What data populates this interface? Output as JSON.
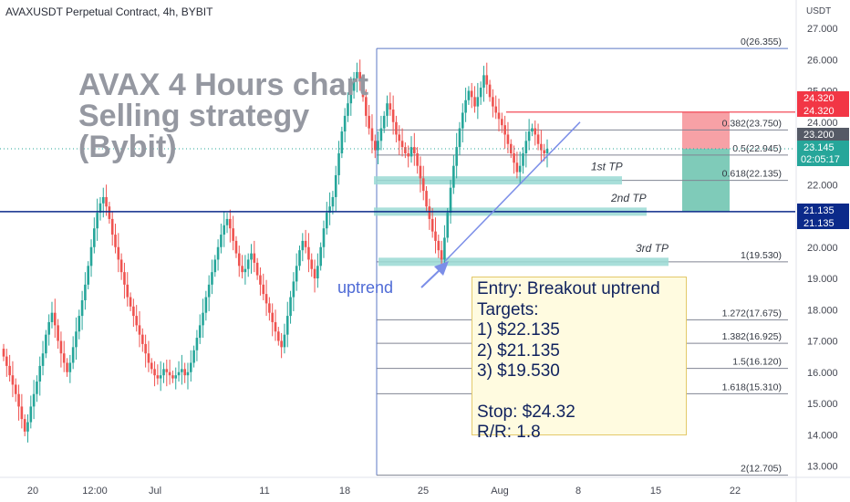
{
  "header": {
    "symbol": "AVAXUSDT Perpetual Contract, 4h, BYBIT",
    "currency": "USDT"
  },
  "title_lines": [
    "AVAX 4 Hours chart",
    "Selling strategy",
    "(Bybit)"
  ],
  "annotation": {
    "entry": "Entry: Breakout uptrend",
    "targets_label": "Targets:",
    "targets": [
      "1) $22.135",
      "2) $21.135",
      "3) $19.530"
    ],
    "stop": "Stop: $24.32",
    "rr": "R/R: 1.8"
  },
  "uptrend_label": "uptrend",
  "tp_labels": [
    "1st TP",
    "2nd TP",
    "3rd TP"
  ],
  "colors": {
    "up": "#26a69a",
    "down": "#ef5350",
    "fib_line": "#808593",
    "stop_red": "#f23645",
    "stop_zone": "#f7a1a6",
    "target_zone": "#7fcbb9",
    "horizontal_blue": "#0b2a8a",
    "trendline": "#7b8ee8",
    "tp_band": "#9ad9d3"
  },
  "chart_data": {
    "type": "candlestick",
    "timeframe": "4h",
    "y_axis_ticks": [
      27.0,
      26.0,
      25.0,
      24.0,
      23.0,
      22.0,
      21.0,
      20.0,
      19.0,
      18.0,
      17.0,
      16.0,
      15.0,
      14.0,
      13.0
    ],
    "y_range": [
      12.35,
      27.55
    ],
    "x_tick_labels": [
      "20",
      "12:00",
      "Jul",
      "11",
      "18",
      "25",
      "Aug",
      "8",
      "15",
      "22"
    ],
    "price_tags": [
      {
        "value": "24.320",
        "color": "#f23645"
      },
      {
        "value": "24.320",
        "color": "#f23645"
      },
      {
        "value": "23.200",
        "color": "#555a66"
      },
      {
        "value": "23.145",
        "color": "#26a69a",
        "sub": "02:05:17"
      },
      {
        "value": "21.135",
        "color": "#0b2a8a"
      },
      {
        "value": "21.135",
        "color": "#0b2a8a"
      }
    ],
    "fibonacci": [
      {
        "level": "0",
        "price": 26.355,
        "label": "0(26.355)"
      },
      {
        "level": "0.382",
        "price": 23.75,
        "label": "0.382(23.750)"
      },
      {
        "level": "0.5",
        "price": 22.945,
        "label": "0.5(22.945)"
      },
      {
        "level": "0.618",
        "price": 22.135,
        "label": "0.618(22.135)"
      },
      {
        "level": "1",
        "price": 19.53,
        "label": "1(19.530)"
      },
      {
        "level": "1.272",
        "price": 17.675,
        "label": "1.272(17.675)"
      },
      {
        "level": "1.382",
        "price": 16.925,
        "label": "1.382(16.925)"
      },
      {
        "level": "1.5",
        "price": 16.12,
        "label": "1.5(16.120)"
      },
      {
        "level": "1.618",
        "price": 15.31,
        "label": "1.618(15.310)"
      },
      {
        "level": "2",
        "price": 12.705,
        "label": "2(12.705)"
      }
    ],
    "levels": {
      "stop": 24.32,
      "entry": 23.145,
      "target_zone_bottom": 21.135,
      "support": 21.135
    },
    "tp_bands": [
      22.135,
      21.135,
      19.53
    ],
    "trendline": {
      "from_price": 19.55,
      "to_price": 24.0
    },
    "closes": [
      16.5,
      16.2,
      15.9,
      15.6,
      15.3,
      14.9,
      14.5,
      14.1,
      14.4,
      14.9,
      15.3,
      15.7,
      16.2,
      16.6,
      17.2,
      17.6,
      17.9,
      17.5,
      17.0,
      16.6,
      16.3,
      16.0,
      16.3,
      16.8,
      17.3,
      17.8,
      18.3,
      18.8,
      19.4,
      20.0,
      20.6,
      21.1,
      21.4,
      21.6,
      21.3,
      20.9,
      20.4,
      20.0,
      19.6,
      19.2,
      18.8,
      18.4,
      18.1,
      17.8,
      17.5,
      17.2,
      16.9,
      16.6,
      16.3,
      16.1,
      15.9,
      15.8,
      15.9,
      16.1,
      16.0,
      15.9,
      15.8,
      15.9,
      16.0,
      16.1,
      15.9,
      16.0,
      16.3,
      16.7,
      17.1,
      17.5,
      17.9,
      18.4,
      18.8,
      19.2,
      19.6,
      20.0,
      20.4,
      20.7,
      20.9,
      20.6,
      20.2,
      19.8,
      19.4,
      19.2,
      19.3,
      19.6,
      19.8,
      19.5,
      19.1,
      18.8,
      18.5,
      18.2,
      17.9,
      17.6,
      17.3,
      17.0,
      16.8,
      17.2,
      17.8,
      18.4,
      18.9,
      19.4,
      19.9,
      20.2,
      20.0,
      19.6,
      19.3,
      19.0,
      19.4,
      20.0,
      20.6,
      21.1,
      21.3,
      21.6,
      22.3,
      23.0,
      23.7,
      24.2,
      24.6,
      25.0,
      25.4,
      25.6,
      25.3,
      24.8,
      24.2,
      23.8,
      23.4,
      23.1,
      23.4,
      23.8,
      24.2,
      24.6,
      24.4,
      24.0,
      23.6,
      23.4,
      23.2,
      23.0,
      22.9,
      23.2,
      23.0,
      22.6,
      22.2,
      21.8,
      21.3,
      20.9,
      20.5,
      20.2,
      19.9,
      19.6,
      20.3,
      21.1,
      21.9,
      22.6,
      23.2,
      23.8,
      24.3,
      24.7,
      25.0,
      24.8,
      24.5,
      24.8,
      25.1,
      25.5,
      25.2,
      24.8,
      24.5,
      24.3,
      24.1,
      23.9,
      23.6,
      23.3,
      23.0,
      22.7,
      22.4,
      22.6,
      23.0,
      23.4,
      23.7,
      23.8,
      23.6,
      23.3,
      23.1,
      23.0,
      23.145
    ]
  }
}
